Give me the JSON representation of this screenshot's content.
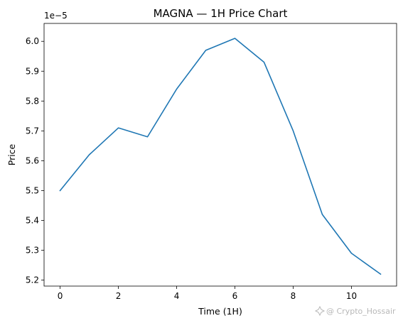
{
  "chart_data": {
    "type": "line",
    "title": "MAGNA — 1H Price Chart",
    "xlabel": "Time (1H)",
    "ylabel": "Price",
    "y_offset_label": "1e−5",
    "x": [
      0,
      1,
      2,
      3,
      4,
      5,
      6,
      7,
      8,
      9,
      10,
      11
    ],
    "series": [
      {
        "values": [
          5.5,
          5.62,
          5.71,
          5.68,
          5.84,
          5.97,
          6.01,
          5.93,
          5.7,
          5.42,
          5.29,
          5.22
        ],
        "color": "#1f77b4"
      }
    ],
    "xlim": [
      -0.55,
      11.55
    ],
    "ylim": [
      5.18,
      6.06
    ],
    "x_ticks": [
      0,
      2,
      4,
      6,
      8,
      10
    ],
    "x_tick_labels": [
      "0",
      "2",
      "4",
      "6",
      "8",
      "10"
    ],
    "y_ticks": [
      5.2,
      5.3,
      5.4,
      5.5,
      5.6,
      5.7,
      5.8,
      5.9,
      6.0
    ],
    "y_tick_labels": [
      "5.2",
      "5.3",
      "5.4",
      "5.5",
      "5.6",
      "5.7",
      "5.8",
      "5.9",
      "6.0"
    ],
    "grid": false,
    "legend": "none"
  },
  "watermark": {
    "text": "@ Crypto_Hossair",
    "icon": "sparkle-icon"
  }
}
